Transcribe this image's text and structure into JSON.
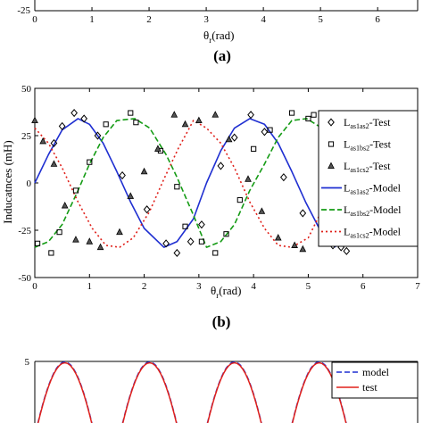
{
  "figure": {
    "panel_a_label": "(a)",
    "panel_b_label": "(b)"
  },
  "panel_a": {
    "xlabel_main": "θ",
    "xlabel_sub": "r",
    "xlabel_unit": "(rad)",
    "yticks_visible": [
      "-25"
    ],
    "xticks": [
      "0",
      "1",
      "2",
      "3",
      "4",
      "5",
      "6"
    ]
  },
  "chart_data": [
    {
      "type": "line",
      "ylabel": "Inducatnces (mH)",
      "xlabel_main": "θ",
      "xlabel_sub": "r",
      "xlabel_unit": "(rad)",
      "xlim": [
        0,
        7
      ],
      "ylim": [
        -50,
        50
      ],
      "xticks": [
        "0",
        "1",
        "2",
        "3",
        "4",
        "5",
        "6",
        "7"
      ],
      "yticks": [
        "50",
        "25",
        "0",
        "-25",
        "-50"
      ],
      "legend_position": "right",
      "legend": [
        {
          "base": "L",
          "sub": "as1as2",
          "suffix": "-Test",
          "marker": "diamond"
        },
        {
          "base": "L",
          "sub": "as1bs2",
          "suffix": "-Test",
          "marker": "square"
        },
        {
          "base": "L",
          "sub": "as1cs2",
          "suffix": "-Test",
          "marker": "triangle"
        },
        {
          "base": "L",
          "sub": "as1as2",
          "suffix": "-Model",
          "color": "#1f2fd1",
          "dash": "solid"
        },
        {
          "base": "L",
          "sub": "as1bs2",
          "suffix": "-Model",
          "color": "#149b14",
          "dash": "dashed"
        },
        {
          "base": "L",
          "sub": "as1cs2",
          "suffix": "-Model",
          "color": "#e0201a",
          "dash": "dotted"
        }
      ],
      "series": [
        {
          "name": "L_as1as2-Model",
          "kind": "model",
          "color": "#1f2fd1",
          "dash": "solid",
          "x": [
            0,
            0.25,
            0.5,
            0.79,
            1.0,
            1.25,
            1.5,
            1.75,
            2.0,
            2.36,
            2.6,
            2.9,
            3.14,
            3.4,
            3.65,
            3.93,
            4.2,
            4.45,
            4.7,
            4.95,
            5.2,
            5.5
          ],
          "y": [
            0,
            15,
            28,
            34,
            31,
            21,
            6,
            -10,
            -24,
            -34,
            -31,
            -19,
            0,
            17,
            29,
            34,
            31,
            21,
            6,
            -10,
            -24,
            -34
          ]
        },
        {
          "name": "L_as1bs2-Model",
          "kind": "model",
          "color": "#149b14",
          "dash": "dashed",
          "x": [
            0,
            0.25,
            0.5,
            0.79,
            1.0,
            1.25,
            1.5,
            1.83,
            2.1,
            2.4,
            2.6,
            2.9,
            3.14,
            3.4,
            3.65,
            3.93,
            4.2,
            4.45,
            4.7,
            4.97,
            5.25,
            5.5
          ],
          "y": [
            -34,
            -31,
            -22,
            -4,
            10,
            24,
            33,
            34,
            29,
            15,
            3,
            -17,
            -34,
            -31,
            -22,
            -4,
            10,
            24,
            33,
            34,
            29,
            15
          ]
        },
        {
          "name": "L_as1cs2-Model",
          "kind": "model",
          "color": "#e0201a",
          "dash": "dotted",
          "x": [
            0,
            0.25,
            0.5,
            0.79,
            1.05,
            1.3,
            1.55,
            1.8,
            2.1,
            2.36,
            2.62,
            2.9,
            3.14,
            3.4,
            3.65,
            3.93,
            4.2,
            4.45,
            4.7,
            5.0,
            5.24,
            5.5
          ],
          "y": [
            29,
            21,
            8,
            -10,
            -24,
            -33,
            -34,
            -29,
            -15,
            2,
            18,
            33,
            29,
            21,
            8,
            -10,
            -24,
            -33,
            -34,
            -29,
            -15,
            2
          ]
        },
        {
          "name": "L_as1as2-Test",
          "kind": "test",
          "marker": "diamond",
          "x": [
            0.35,
            0.5,
            0.72,
            0.9,
            1.15,
            1.6,
            2.05,
            2.4,
            2.6,
            2.85,
            3.05,
            3.4,
            3.65,
            3.95,
            4.2,
            4.55,
            4.9,
            5.45,
            5.6,
            5.7
          ],
          "y": [
            21,
            30,
            37,
            34,
            25,
            4,
            -14,
            -32,
            -37,
            -31,
            -22,
            9,
            24,
            36,
            27,
            3,
            -16,
            -33,
            -34,
            -36
          ]
        },
        {
          "name": "L_as1bs2-Test",
          "kind": "test",
          "marker": "square",
          "x": [
            0.05,
            0.3,
            0.45,
            0.75,
            1.0,
            1.3,
            1.75,
            1.85,
            2.3,
            2.6,
            2.75,
            3.05,
            3.3,
            3.5,
            3.75,
            4.0,
            4.3,
            4.7,
            5.0,
            5.1,
            5.35
          ],
          "y": [
            -32,
            -37,
            -26,
            -4,
            11,
            31,
            37,
            32,
            17,
            -2,
            -23,
            -31,
            -37,
            -27,
            -9,
            18,
            28,
            37,
            34,
            36,
            4
          ]
        },
        {
          "name": "L_as1cs2-Test",
          "kind": "test",
          "marker": "triangle",
          "x": [
            0.0,
            0.15,
            0.35,
            0.55,
            0.75,
            1.0,
            1.2,
            1.55,
            1.75,
            2.0,
            2.25,
            2.55,
            2.75,
            3.0,
            3.3,
            3.55,
            3.9,
            4.15,
            4.45,
            4.75,
            4.9
          ],
          "y": [
            33,
            22,
            10,
            -12,
            -30,
            -31,
            -34,
            -26,
            -7,
            6,
            18,
            36,
            31,
            33,
            36,
            23,
            2,
            -15,
            -29,
            -33,
            -35
          ]
        }
      ]
    },
    {
      "type": "line",
      "ylim_top_visible": "5",
      "legend_position": "top-right",
      "legend": [
        {
          "label": "model",
          "color": "#1f2fd1",
          "dash": "dashed"
        },
        {
          "label": "test",
          "color": "#e0201a",
          "dash": "solid"
        }
      ],
      "series": [
        {
          "name": "model",
          "color": "#1f2fd1",
          "dash": "dashed",
          "peaks_x": [
            0.55,
            2.1,
            3.65,
            5.2
          ],
          "y_peak": 4.8
        },
        {
          "name": "test",
          "color": "#e0201a",
          "dash": "solid",
          "peaks_x": [
            0.55,
            2.1,
            3.65,
            5.2
          ],
          "y_peak": 4.5
        }
      ]
    }
  ]
}
